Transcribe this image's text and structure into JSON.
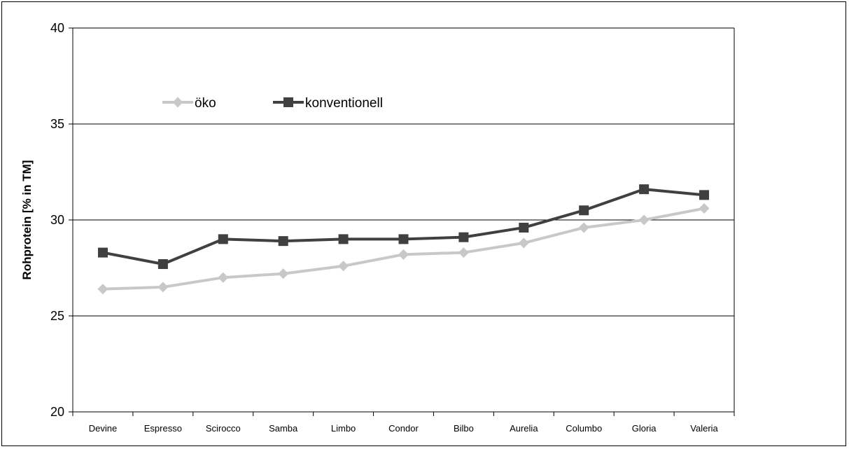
{
  "chart_data": {
    "type": "line",
    "title": "",
    "xlabel": "",
    "ylabel": "Rohprotein [% in TM]",
    "ylim": [
      20,
      40
    ],
    "yticks": [
      20,
      25,
      30,
      35,
      40
    ],
    "ytick_labels": [
      "20",
      "25",
      "30",
      "35",
      "40"
    ],
    "grid": "horizontal",
    "legend_position": "upper-left inside plot",
    "categories": [
      "Devine",
      "Espresso",
      "Scirocco",
      "Samba",
      "Limbo",
      "Condor",
      "Bilbo",
      "Aurelia",
      "Columbo",
      "Gloria",
      "Valeria"
    ],
    "series": [
      {
        "name": "öko",
        "color": "#c8c8c8",
        "marker": "diamond",
        "values": [
          26.4,
          26.5,
          27.0,
          27.2,
          27.6,
          28.2,
          28.3,
          28.8,
          29.6,
          30.0,
          30.6
        ]
      },
      {
        "name": "konventionell",
        "color": "#404040",
        "marker": "square",
        "values": [
          28.3,
          27.7,
          29.0,
          28.9,
          29.0,
          29.0,
          29.1,
          29.6,
          30.5,
          31.6,
          31.3
        ]
      }
    ]
  }
}
